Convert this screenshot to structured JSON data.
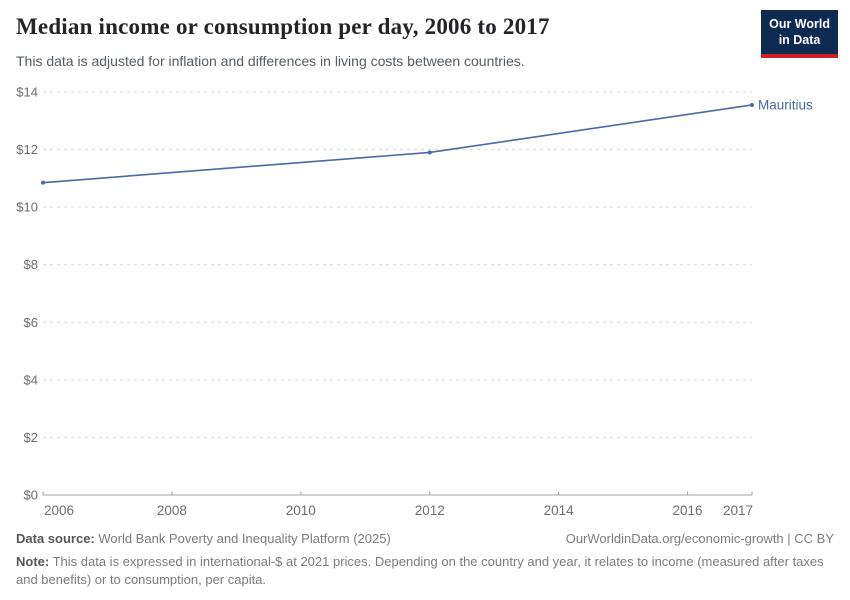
{
  "header": {
    "title": "Median income or consumption per day, 2006 to 2017",
    "subtitle": "This data is adjusted for inflation and differences in living costs between countries.",
    "logo": {
      "line1": "Our World",
      "line2": "in Data",
      "bg_color": "#0e2a51",
      "accent_color": "#cc2226"
    }
  },
  "chart_data": {
    "type": "line",
    "title": "Median income or consumption per day, 2006 to 2017",
    "xlabel": "",
    "ylabel": "",
    "x": [
      2006,
      2012,
      2017
    ],
    "series": [
      {
        "name": "Mauritius",
        "values": [
          10.85,
          11.9,
          13.55
        ],
        "color": "#4a69a5"
      }
    ],
    "x_ticks": [
      2006,
      2008,
      2010,
      2012,
      2014,
      2016,
      2017
    ],
    "y_ticks": [
      0,
      2,
      4,
      6,
      8,
      10,
      12,
      14
    ],
    "y_tick_prefix": "$",
    "xlim": [
      2006,
      2017
    ],
    "ylim": [
      0,
      14
    ],
    "grid": "horizontal dashed gridlines, solid baseline at $0",
    "legend_position": "end-of-line label",
    "entity_label": "Mauritius"
  },
  "colors": {
    "line": "#4a69a5",
    "grid": "#d9d9d9",
    "axis": "#a3a3a3",
    "tick_label": "#6e6e6e",
    "entity_label": "#4a69a5"
  },
  "footer": {
    "source_label": "Data source:",
    "source_text": " World Bank Poverty and Inequality Platform (2025)",
    "attribution": "OurWorldinData.org/economic-growth | CC BY",
    "note_label": "Note:",
    "note_text": " This data is expressed in international-$ at 2021 prices. Depending on the country and year, it relates to income (measured after taxes and benefits) or to consumption, per capita."
  }
}
